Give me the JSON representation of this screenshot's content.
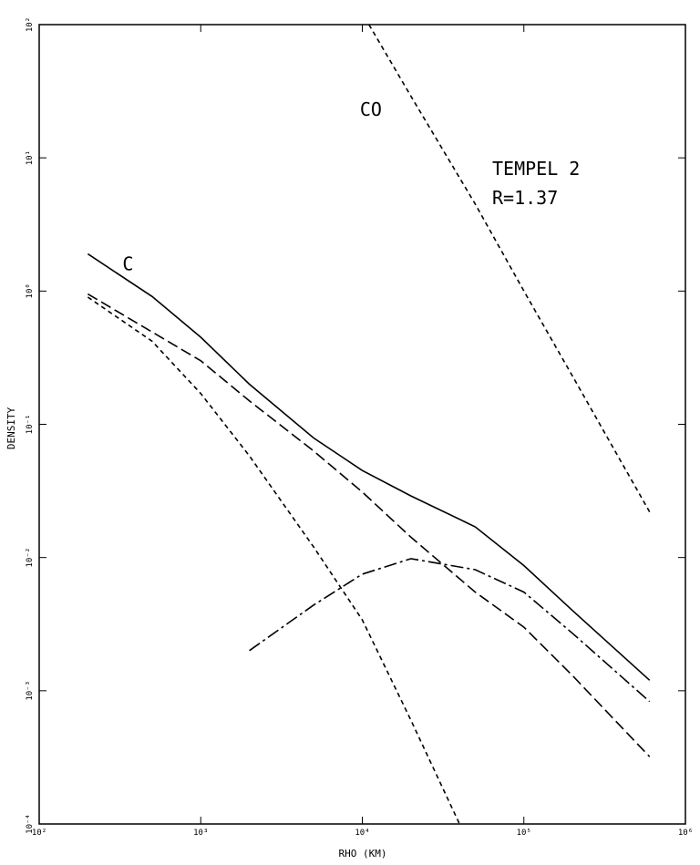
{
  "chart_data": {
    "type": "line",
    "xlabel": "RHO (KM)",
    "ylabel": "DENSITY",
    "annotations": [
      "TEMPEL 2",
      "R=1.37"
    ],
    "xscale": "log",
    "yscale": "log",
    "xlim": [
      100,
      1000000
    ],
    "ylim": [
      0.0001,
      100
    ],
    "xticks": [
      {
        "value": 100,
        "label": "10²"
      },
      {
        "value": 1000,
        "label": "10³"
      },
      {
        "value": 10000,
        "label": "10⁴"
      },
      {
        "value": 100000,
        "label": "10⁵"
      },
      {
        "value": 1000000,
        "label": "10⁶"
      }
    ],
    "yticks": [
      {
        "value": 0.0001,
        "label": "10⁻⁴"
      },
      {
        "value": 0.001,
        "label": "10⁻³"
      },
      {
        "value": 0.01,
        "label": "10⁻²"
      },
      {
        "value": 0.1,
        "label": "10⁻¹"
      },
      {
        "value": 1,
        "label": "10⁰"
      },
      {
        "value": 10,
        "label": "10¹"
      },
      {
        "value": 100,
        "label": "10²"
      }
    ],
    "series": [
      {
        "name": "C",
        "color": "#000000",
        "style": "solid",
        "x": [
          200,
          500,
          1000,
          2000,
          5000,
          10000,
          20000,
          50000,
          100000,
          200000,
          600000
        ],
        "values": [
          1.9,
          0.91,
          0.45,
          0.2,
          0.079,
          0.045,
          0.029,
          0.017,
          0.0087,
          0.004,
          0.0012
        ]
      },
      {
        "color": "#000000",
        "style": "longdash",
        "x": [
          200,
          1000,
          2000,
          5000,
          10000,
          20000,
          50000,
          100000,
          200000,
          600000
        ],
        "values": [
          0.95,
          0.3,
          0.15,
          0.063,
          0.031,
          0.0142,
          0.0055,
          0.003,
          0.0013,
          0.00032
        ]
      },
      {
        "color": "#000000",
        "style": "dashdot",
        "x": [
          2000,
          5000,
          10000,
          20000,
          50000,
          100000,
          200000,
          600000
        ],
        "values": [
          0.002,
          0.0044,
          0.0075,
          0.0098,
          0.0081,
          0.0055,
          0.0027,
          0.00083
        ]
      },
      {
        "color": "#000000",
        "style": "dashed",
        "x": [
          200,
          500,
          1000,
          2000,
          5000,
          10000,
          20000,
          40000
        ],
        "values": [
          0.9,
          0.42,
          0.17,
          0.058,
          0.012,
          0.0034,
          0.0006,
          0.0001
        ]
      },
      {
        "name": "CO",
        "color": "#000000",
        "style": "dashed",
        "x": [
          11000,
          20000,
          50000,
          100000,
          200000,
          600000
        ],
        "values": [
          100,
          29,
          4.5,
          1.0,
          0.23,
          0.022
        ]
      }
    ]
  }
}
